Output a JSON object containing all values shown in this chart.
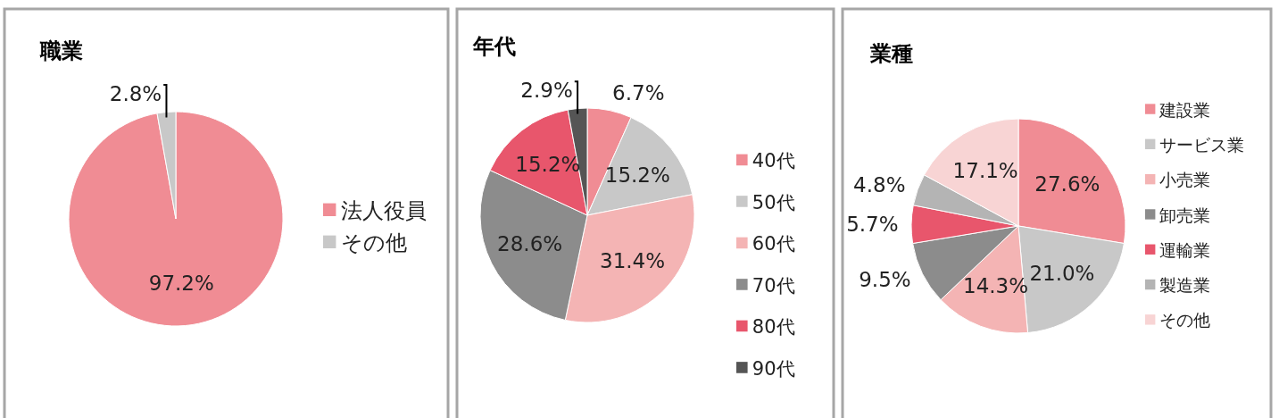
{
  "chart_data": [
    {
      "type": "pie",
      "title": "職業",
      "categories": [
        "法人役員",
        "その他"
      ],
      "values": [
        97.2,
        2.8
      ],
      "colors": [
        "#f08c94",
        "#c8c8c8"
      ],
      "value_labels": [
        "97.2%",
        "2.8%"
      ],
      "legend": "right"
    },
    {
      "type": "pie",
      "title": "年代",
      "categories": [
        "40代",
        "50代",
        "60代",
        "70代",
        "80代",
        "90代"
      ],
      "values": [
        6.7,
        15.2,
        31.4,
        28.6,
        15.2,
        2.9
      ],
      "colors": [
        "#f08c94",
        "#c8c8c8",
        "#f4b4b4",
        "#8c8c8c",
        "#e8566c",
        "#555555"
      ],
      "value_labels": [
        "6.7%",
        "15.2%",
        "31.4%",
        "28.6%",
        "15.2%",
        "2.9%"
      ],
      "legend": "right"
    },
    {
      "type": "pie",
      "title": "業種",
      "categories": [
        "建設業",
        "サービス業",
        "小売業",
        "卸売業",
        "運輸業",
        "製造業",
        "その他"
      ],
      "values": [
        27.6,
        21.0,
        14.3,
        9.5,
        5.7,
        4.8,
        17.1
      ],
      "colors": [
        "#f08c94",
        "#c8c8c8",
        "#f4b4b4",
        "#8c8c8c",
        "#e8566c",
        "#b4b4b4",
        "#f8d4d4"
      ],
      "value_labels": [
        "27.6%",
        "21.0%",
        "14.3%",
        "9.5%",
        "5.7%",
        "4.8%",
        "17.1%"
      ],
      "legend": "right"
    }
  ]
}
